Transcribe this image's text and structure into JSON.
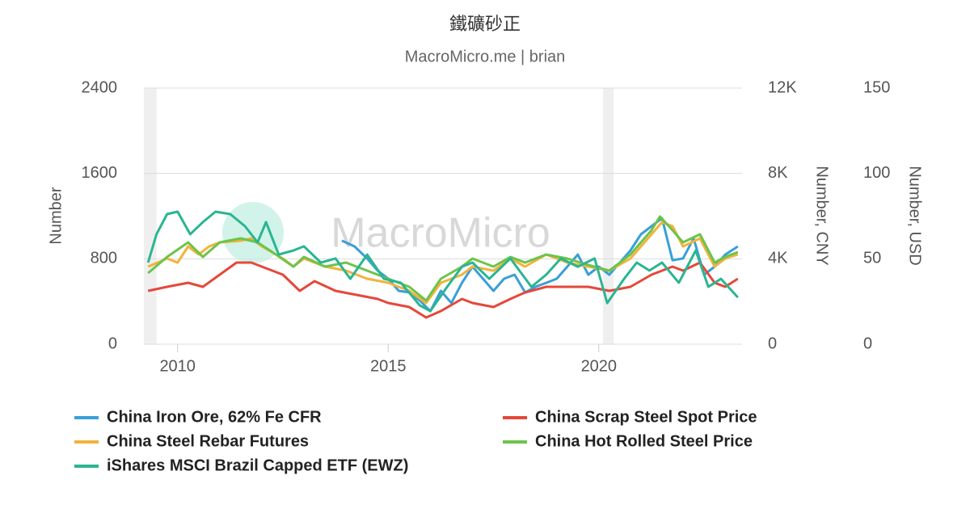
{
  "chart_data": {
    "type": "line",
    "title": "鐵礦砂正",
    "subtitle": "MacroMicro.me | brian",
    "watermark": "MacroMicro",
    "ylabel": "Number",
    "y2label": "Number, CNY",
    "y3label": "Number, USD",
    "xlim": [
      2009.2,
      2023.4
    ],
    "xticks": [
      2010,
      2015,
      2020
    ],
    "ylim": [
      0,
      2400
    ],
    "yticks": [
      0,
      800,
      1600,
      2400
    ],
    "y2lim": [
      0,
      12000
    ],
    "y2ticks": [
      {
        "value": 0,
        "label": "0"
      },
      {
        "value": 4000,
        "label": "4K"
      },
      {
        "value": 8000,
        "label": "8K"
      },
      {
        "value": 12000,
        "label": "12K"
      }
    ],
    "y3lim": [
      0,
      150
    ],
    "y3ticks": [
      0,
      50,
      100,
      150
    ],
    "grid": true,
    "shaded_ranges": [
      [
        2009.2,
        2009.5
      ],
      [
        2020.1,
        2020.35
      ]
    ],
    "series": [
      {
        "name": "China Iron Ore, 62% Fe CFR",
        "color": "#3a9fd8",
        "axis": "y",
        "x": [
          2013.9,
          2014.2,
          2014.5,
          2014.75,
          2015.0,
          2015.25,
          2015.5,
          2015.75,
          2016.0,
          2016.25,
          2016.5,
          2016.75,
          2017.0,
          2017.25,
          2017.5,
          2017.75,
          2018.0,
          2018.25,
          2018.5,
          2018.75,
          2019.0,
          2019.5,
          2019.75,
          2020.0,
          2020.25,
          2020.5,
          2020.75,
          2021.0,
          2021.25,
          2021.5,
          2021.75,
          2022.0,
          2022.25,
          2022.5,
          2022.75,
          2023.0,
          2023.3
        ],
        "values": [
          970,
          916,
          803,
          689,
          613,
          500,
          485,
          409,
          310,
          500,
          386,
          575,
          727,
          613,
          500,
          613,
          651,
          485,
          538,
          575,
          613,
          840,
          651,
          727,
          651,
          765,
          878,
          1030,
          1105,
          1181,
          787,
          803,
          992,
          651,
          727,
          840,
          916
        ]
      },
      {
        "name": "China Scrap Steel Spot Price",
        "color": "#e5483a",
        "axis": "y2",
        "x": [
          2009.3,
          2009.75,
          2010.25,
          2010.6,
          2011.0,
          2011.4,
          2011.75,
          2012.0,
          2012.5,
          2012.9,
          2013.25,
          2013.75,
          2014.25,
          2014.75,
          2015.0,
          2015.5,
          2015.9,
          2016.25,
          2016.75,
          2017.0,
          2017.5,
          2017.9,
          2018.25,
          2018.75,
          2019.25,
          2019.75,
          2020.25,
          2020.75,
          2021.25,
          2021.75,
          2022.0,
          2022.4,
          2022.75,
          2023.0,
          2023.3
        ],
        "values": [
          2498,
          2688,
          2877,
          2688,
          3256,
          3823,
          3823,
          3634,
          3256,
          2498,
          2953,
          2498,
          2309,
          2120,
          1931,
          1741,
          1249,
          1552,
          2120,
          1931,
          1741,
          2120,
          2423,
          2688,
          2688,
          2688,
          2498,
          2688,
          3256,
          3634,
          3445,
          3823,
          2877,
          2688,
          3066
        ]
      },
      {
        "name": "China Steel Rebar Futures",
        "color": "#f2b33d",
        "axis": "y2",
        "x": [
          2009.3,
          2009.75,
          2010.0,
          2010.25,
          2010.5,
          2010.75,
          2011.0,
          2011.5,
          2011.75,
          2012.0,
          2012.5,
          2012.75,
          2013.0,
          2013.5,
          2014.0,
          2014.5,
          2015.0,
          2015.5,
          2015.9,
          2016.25,
          2016.75,
          2017.0,
          2017.5,
          2017.9,
          2018.25,
          2018.75,
          2019.25,
          2019.75,
          2020.25,
          2020.75,
          2021.25,
          2021.5,
          2021.75,
          2022.0,
          2022.4,
          2022.75,
          2023.0,
          2023.3
        ],
        "values": [
          3634,
          4013,
          3823,
          4580,
          4202,
          4580,
          4770,
          4845,
          4959,
          4580,
          4013,
          3634,
          4013,
          3634,
          3445,
          3066,
          2877,
          2498,
          1931,
          2877,
          3256,
          3634,
          3445,
          4013,
          3634,
          4202,
          3823,
          3634,
          3445,
          4013,
          5148,
          5716,
          5527,
          4580,
          4959,
          3634,
          4013,
          4202
        ]
      },
      {
        "name": "China Hot Rolled Steel Price",
        "color": "#6cc44a",
        "axis": "y2",
        "x": [
          2009.3,
          2009.75,
          2010.25,
          2010.6,
          2011.0,
          2011.5,
          2011.9,
          2012.25,
          2012.75,
          2013.0,
          2013.5,
          2014.0,
          2014.5,
          2015.0,
          2015.5,
          2015.9,
          2016.25,
          2016.75,
          2017.0,
          2017.5,
          2017.9,
          2018.25,
          2018.75,
          2019.25,
          2019.75,
          2020.25,
          2020.75,
          2021.25,
          2021.45,
          2021.75,
          2022.0,
          2022.4,
          2022.75,
          2023.0,
          2023.3
        ],
        "values": [
          3331,
          4088,
          4770,
          4088,
          4770,
          4959,
          4770,
          4315,
          3634,
          4088,
          3634,
          3823,
          3445,
          3066,
          2688,
          2044,
          3066,
          3634,
          4013,
          3634,
          4088,
          3823,
          4202,
          4013,
          3710,
          3445,
          4202,
          5338,
          5981,
          5338,
          4770,
          5148,
          3823,
          4088,
          4315
        ]
      },
      {
        "name": "iShares MSCI Brazil Capped ETF (EWZ)",
        "color": "#2bb592",
        "axis": "y3",
        "x": [
          2009.3,
          2009.5,
          2009.75,
          2010.0,
          2010.3,
          2010.6,
          2010.9,
          2011.25,
          2011.6,
          2011.9,
          2012.1,
          2012.4,
          2012.75,
          2013.0,
          2013.4,
          2013.75,
          2014.1,
          2014.5,
          2014.9,
          2015.3,
          2015.75,
          2016.0,
          2016.4,
          2016.75,
          2017.0,
          2017.4,
          2017.9,
          2018.4,
          2018.75,
          2019.1,
          2019.5,
          2019.9,
          2020.2,
          2020.6,
          2020.9,
          2021.2,
          2021.5,
          2021.9,
          2022.3,
          2022.6,
          2022.9,
          2023.3
        ],
        "values": [
          47.8,
          64.4,
          76.2,
          77.6,
          64.4,
          71.5,
          77.6,
          76.2,
          69.1,
          59.6,
          71.5,
          52.5,
          54.9,
          57.3,
          47.8,
          50.2,
          38.3,
          52.5,
          38.3,
          36.0,
          22.7,
          19.4,
          33.6,
          45.4,
          47.8,
          38.3,
          50.2,
          33.6,
          40.7,
          50.2,
          45.4,
          50.2,
          24.1,
          38.3,
          47.8,
          43.1,
          47.8,
          36.0,
          54.9,
          33.6,
          38.3,
          27.4
        ]
      }
    ]
  }
}
